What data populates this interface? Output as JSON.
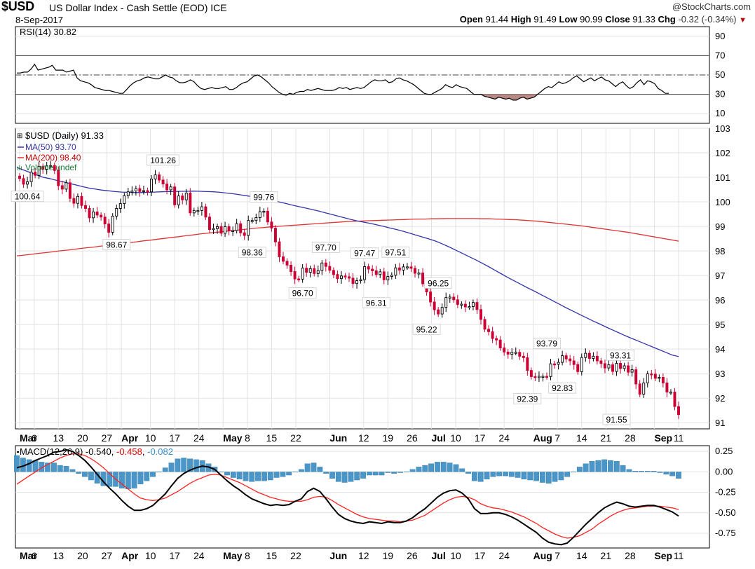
{
  "header": {
    "symbol": "$USD",
    "name": "US Dollar Index - Cash Settle (EOD) ICE",
    "date": "8-Sep-2017",
    "copyright": "@StockCharts.com",
    "open_label": "Open",
    "open": "91.44",
    "high_label": "High",
    "high": "91.49",
    "low_label": "Low",
    "low": "90.99",
    "close_label": "Close",
    "close": "91.33",
    "chg_label": "Chg",
    "chg": "-0.32 (-0.34%)"
  },
  "colors": {
    "up_candle": "#ffffff",
    "down_candle": "#cc0033",
    "ma50": "#3333aa",
    "ma200": "#dd3333",
    "rsi_line": "#000000",
    "rsi_oversold_fill": "#b98a84",
    "macd_line": "#000000",
    "signal_line": "#ff2222",
    "histogram": "#4a96c8",
    "grid": "#e2e2e2"
  },
  "chart_data": [
    {
      "type": "line",
      "name": "rsi",
      "legend": "RSI(14) 30.82",
      "y_ticks": [
        "90",
        "70",
        "50",
        "30",
        "10"
      ],
      "ylim": [
        0,
        100
      ],
      "reference_lines": [
        70,
        50,
        30
      ],
      "values": [
        52,
        52,
        53,
        53,
        56,
        61,
        55,
        56,
        57,
        58,
        60,
        55,
        55,
        55,
        53,
        54,
        55,
        47,
        44,
        43,
        42,
        40,
        37,
        36,
        35,
        34,
        34,
        33,
        32,
        31,
        31,
        35,
        39,
        42,
        44,
        45,
        47,
        48,
        47,
        46,
        46,
        48,
        50,
        48,
        47,
        44,
        42,
        42,
        43,
        45,
        43,
        39,
        36,
        35,
        36,
        37,
        36,
        36,
        37,
        38,
        35,
        35,
        37,
        40,
        42,
        43,
        46,
        49,
        50,
        48,
        45,
        42,
        38,
        35,
        32,
        30,
        29,
        31,
        30,
        32,
        33,
        33,
        35,
        34,
        35,
        36,
        35,
        34,
        34,
        34,
        35,
        37,
        36,
        37,
        35,
        36,
        37,
        36,
        37,
        40,
        43,
        45,
        44,
        44,
        45,
        42,
        43,
        46,
        47,
        45,
        44,
        42,
        40,
        37,
        34,
        31,
        30,
        30,
        32,
        34,
        36,
        40,
        38,
        37,
        40,
        38,
        37,
        36,
        33,
        30,
        30,
        30,
        28,
        27,
        26,
        25,
        27,
        26,
        25,
        26,
        24,
        24,
        26,
        27,
        25,
        26,
        27,
        30,
        33,
        36,
        38,
        37,
        40,
        43,
        41,
        42,
        44,
        47,
        49,
        46,
        43,
        45,
        47,
        44,
        46,
        48,
        45,
        44,
        41,
        38,
        41,
        43,
        39,
        36,
        38,
        42,
        45,
        40,
        44,
        43,
        41,
        36,
        34,
        31,
        31
      ],
      "last": 30.82
    },
    {
      "type": "candlestick",
      "name": "price",
      "legend": "$USD (Daily) 91.33",
      "ma50_legend": "MA(50) 93.70",
      "ma200_legend": "MA(200) 98.40",
      "volume_legend": "Volume undef",
      "y_ticks": [
        "103",
        "102",
        "101",
        "100",
        "99",
        "98",
        "97",
        "96",
        "95",
        "94",
        "93",
        "92",
        "91"
      ],
      "ylim": [
        90.75,
        103
      ],
      "closes": [
        100.95,
        100.72,
        100.82,
        101.21,
        101.08,
        101.44,
        101.33,
        101.47,
        101.48,
        101.28,
        100.66,
        100.52,
        100.78,
        100.14,
        99.94,
        100.22,
        99.85,
        99.73,
        99.35,
        99.59,
        99.46,
        99.38,
        99.1,
        98.76,
        99.42,
        99.73,
        99.93,
        100.25,
        100.41,
        100.44,
        100.54,
        100.42,
        100.46,
        100.41,
        100.93,
        101.1,
        100.89,
        100.73,
        100.49,
        100.61,
        99.88,
        100.24,
        100.08,
        100.36,
        99.55,
        99.64,
        99.65,
        99.8,
        99.38,
        98.87,
        98.91,
        98.99,
        98.72,
        98.99,
        98.82,
        98.83,
        99.11,
        98.74,
        98.63,
        99.24,
        99.24,
        99.36,
        99.6,
        99.62,
        99.18,
        98.93,
        98.37,
        97.76,
        97.58,
        97.42,
        97.16,
        96.86,
        96.85,
        97.3,
        97.13,
        97.28,
        97.08,
        97.2,
        97.51,
        97.37,
        97.21,
        97.04,
        96.87,
        96.98,
        96.95,
        96.89,
        96.67,
        96.79,
        96.83,
        97.36,
        97.26,
        97.19,
        97.04,
        97.15,
        96.82,
        96.96,
        97.01,
        97.31,
        97.22,
        97.35,
        97.35,
        97.29,
        97.09,
        97.1,
        96.66,
        96.33,
        95.92,
        95.6,
        95.43,
        95.7,
        96.1,
        96.12,
        96.01,
        95.82,
        95.83,
        95.72,
        95.73,
        95.9,
        95.61,
        95.21,
        94.81,
        94.71,
        94.43,
        94.37,
        94.05,
        93.88,
        93.79,
        93.87,
        93.87,
        93.71,
        93.65,
        93.13,
        92.88,
        92.84,
        92.89,
        92.89,
        92.88,
        93.4,
        93.38,
        93.46,
        93.73,
        93.6,
        93.52,
        93.37,
        93.08,
        93.66,
        93.83,
        93.62,
        93.71,
        93.52,
        93.41,
        93.23,
        93.36,
        93.09,
        93.42,
        93.21,
        93.32,
        93.06,
        93.16,
        92.58,
        92.16,
        92.62,
        92.99,
        92.98,
        92.81,
        92.85,
        92.62,
        92.25,
        92.25,
        91.66,
        91.33
      ],
      "ma50": [
        101.4,
        101.3,
        101.2,
        101.1,
        101.0,
        100.95,
        100.88,
        100.82,
        100.75,
        100.69,
        100.62,
        100.56,
        100.52,
        100.48,
        100.45,
        100.42,
        100.4,
        100.39,
        100.38,
        100.38,
        100.39,
        100.4,
        100.41,
        100.42,
        100.42,
        100.43,
        100.43,
        100.44,
        100.43,
        100.42,
        100.41,
        100.39,
        100.36,
        100.33,
        100.29,
        100.25,
        100.21,
        100.16,
        100.11,
        100.06,
        100.0,
        99.94,
        99.87,
        99.81,
        99.75,
        99.69,
        99.63,
        99.56,
        99.49,
        99.42,
        99.35,
        99.28,
        99.22,
        99.17,
        99.12,
        99.06,
        99.0,
        98.93,
        98.87,
        98.8,
        98.72,
        98.64,
        98.56,
        98.48,
        98.39,
        98.28,
        98.16,
        98.03,
        97.9,
        97.77,
        97.64,
        97.5,
        97.36,
        97.21,
        97.06,
        96.91,
        96.77,
        96.63,
        96.49,
        96.36,
        96.22,
        96.08,
        95.94,
        95.8,
        95.66,
        95.53,
        95.4,
        95.27,
        95.14,
        95.02,
        94.89,
        94.77,
        94.65,
        94.53,
        94.42,
        94.31,
        94.2,
        94.09,
        93.98,
        93.87,
        93.76,
        93.7
      ],
      "ma200": [
        97.8,
        97.83,
        97.86,
        97.9,
        97.93,
        97.96,
        98.0,
        98.03,
        98.06,
        98.1,
        98.13,
        98.16,
        98.2,
        98.23,
        98.27,
        98.3,
        98.34,
        98.37,
        98.41,
        98.44,
        98.48,
        98.51,
        98.55,
        98.58,
        98.62,
        98.65,
        98.69,
        98.72,
        98.75,
        98.78,
        98.81,
        98.84,
        98.87,
        98.9,
        98.93,
        98.95,
        98.98,
        99.0,
        99.02,
        99.04,
        99.06,
        99.08,
        99.1,
        99.12,
        99.14,
        99.16,
        99.18,
        99.2,
        99.21,
        99.22,
        99.23,
        99.24,
        99.25,
        99.26,
        99.27,
        99.28,
        99.29,
        99.3,
        99.3,
        99.31,
        99.31,
        99.32,
        99.32,
        99.32,
        99.32,
        99.32,
        99.31,
        99.31,
        99.3,
        99.29,
        99.28,
        99.27,
        99.25,
        99.23,
        99.21,
        99.18,
        99.15,
        99.12,
        99.09,
        99.06,
        99.03,
        98.99,
        98.95,
        98.91,
        98.87,
        98.83,
        98.79,
        98.75,
        98.7,
        98.65,
        98.6,
        98.55,
        98.5,
        98.45,
        98.4
      ],
      "annotations": [
        {
          "label": "100.64",
          "value": 100.64,
          "i": 2
        },
        {
          "label": "101.26",
          "value": 101.26,
          "i": 37
        },
        {
          "label": "98.67",
          "value": 98.67,
          "i": 25
        },
        {
          "label": "99.76",
          "value": 99.76,
          "i": 63
        },
        {
          "label": "98.36",
          "value": 98.36,
          "i": 60
        },
        {
          "label": "96.70",
          "value": 96.7,
          "i": 73
        },
        {
          "label": "97.70",
          "value": 97.7,
          "i": 79
        },
        {
          "label": "97.47",
          "value": 97.47,
          "i": 89
        },
        {
          "label": "96.31",
          "value": 96.31,
          "i": 92
        },
        {
          "label": "97.51",
          "value": 97.51,
          "i": 97
        },
        {
          "label": "96.25",
          "value": 96.25,
          "i": 108
        },
        {
          "label": "95.22",
          "value": 95.22,
          "i": 105
        },
        {
          "label": "93.79",
          "value": 93.79,
          "i": 136
        },
        {
          "label": "92.39",
          "value": 92.39,
          "i": 131
        },
        {
          "label": "92.83",
          "value": 92.83,
          "i": 140
        },
        {
          "label": "93.31",
          "value": 93.31,
          "i": 155
        },
        {
          "label": "91.55",
          "value": 91.55,
          "i": 154
        }
      ]
    },
    {
      "type": "line",
      "name": "macd",
      "legend_prefix": "MACD(12,26,9)",
      "legend_macd": "-0.540",
      "legend_signal": "-0.458",
      "legend_hist": "-0.082",
      "y_ticks": [
        "0.25",
        "0.00",
        "-0.25",
        "-0.50",
        "-0.75"
      ],
      "ylim": [
        -0.93,
        0.32
      ],
      "macd": [
        0.05,
        0.07,
        0.1,
        0.14,
        0.17,
        0.2,
        0.24,
        0.25,
        0.27,
        0.25,
        0.2,
        0.14,
        0.06,
        -0.03,
        -0.12,
        -0.2,
        -0.27,
        -0.35,
        -0.42,
        -0.47,
        -0.47,
        -0.45,
        -0.41,
        -0.34,
        -0.27,
        -0.17,
        -0.08,
        -0.02,
        0.02,
        0.05,
        0.07,
        0.06,
        0.03,
        -0.04,
        -0.11,
        -0.17,
        -0.22,
        -0.28,
        -0.33,
        -0.36,
        -0.39,
        -0.41,
        -0.4,
        -0.41,
        -0.4,
        -0.36,
        -0.33,
        -0.24,
        -0.2,
        -0.24,
        -0.33,
        -0.43,
        -0.52,
        -0.57,
        -0.6,
        -0.62,
        -0.63,
        -0.61,
        -0.62,
        -0.63,
        -0.61,
        -0.62,
        -0.62,
        -0.6,
        -0.56,
        -0.5,
        -0.45,
        -0.38,
        -0.31,
        -0.26,
        -0.23,
        -0.22,
        -0.26,
        -0.33,
        -0.45,
        -0.51,
        -0.51,
        -0.5,
        -0.5,
        -0.52,
        -0.55,
        -0.59,
        -0.64,
        -0.69,
        -0.74,
        -0.81,
        -0.86,
        -0.88,
        -0.89,
        -0.87,
        -0.8,
        -0.72,
        -0.64,
        -0.57,
        -0.5,
        -0.44,
        -0.4,
        -0.37,
        -0.39,
        -0.42,
        -0.43,
        -0.42,
        -0.41,
        -0.41,
        -0.43,
        -0.46,
        -0.49,
        -0.54
      ],
      "signal": [
        -0.15,
        -0.1,
        -0.05,
        0.0,
        0.05,
        0.09,
        0.13,
        0.17,
        0.2,
        0.22,
        0.22,
        0.2,
        0.16,
        0.11,
        0.05,
        -0.02,
        -0.09,
        -0.15,
        -0.21,
        -0.27,
        -0.32,
        -0.34,
        -0.35,
        -0.34,
        -0.32,
        -0.28,
        -0.24,
        -0.19,
        -0.14,
        -0.1,
        -0.07,
        -0.04,
        -0.03,
        -0.04,
        -0.07,
        -0.1,
        -0.13,
        -0.17,
        -0.21,
        -0.25,
        -0.28,
        -0.31,
        -0.33,
        -0.35,
        -0.36,
        -0.36,
        -0.36,
        -0.34,
        -0.31,
        -0.3,
        -0.31,
        -0.35,
        -0.4,
        -0.44,
        -0.48,
        -0.52,
        -0.55,
        -0.57,
        -0.58,
        -0.59,
        -0.6,
        -0.6,
        -0.61,
        -0.6,
        -0.59,
        -0.56,
        -0.53,
        -0.48,
        -0.43,
        -0.38,
        -0.34,
        -0.31,
        -0.3,
        -0.31,
        -0.34,
        -0.39,
        -0.42,
        -0.44,
        -0.45,
        -0.47,
        -0.49,
        -0.52,
        -0.55,
        -0.59,
        -0.63,
        -0.68,
        -0.72,
        -0.76,
        -0.79,
        -0.81,
        -0.8,
        -0.78,
        -0.74,
        -0.7,
        -0.64,
        -0.59,
        -0.54,
        -0.5,
        -0.47,
        -0.45,
        -0.44,
        -0.43,
        -0.42,
        -0.42,
        -0.42,
        -0.43,
        -0.44,
        -0.46
      ]
    }
  ],
  "x_axis": {
    "labels": [
      {
        "text": "Mar",
        "i": 0,
        "bold": true
      },
      {
        "text": "6",
        "i": 3,
        "bold": false
      },
      {
        "text": "13",
        "i": 8,
        "bold": false
      },
      {
        "text": "20",
        "i": 13,
        "bold": false
      },
      {
        "text": "27",
        "i": 18,
        "bold": false
      },
      {
        "text": "Apr",
        "i": 21,
        "bold": true
      },
      {
        "text": "10",
        "i": 27,
        "bold": false
      },
      {
        "text": "17",
        "i": 32,
        "bold": false
      },
      {
        "text": "24",
        "i": 37,
        "bold": false
      },
      {
        "text": "May",
        "i": 42,
        "bold": true
      },
      {
        "text": "8",
        "i": 47,
        "bold": false
      },
      {
        "text": "15",
        "i": 52,
        "bold": false
      },
      {
        "text": "22",
        "i": 57,
        "bold": false
      },
      {
        "text": "Jun",
        "i": 64,
        "bold": true
      },
      {
        "text": "12",
        "i": 71,
        "bold": false
      },
      {
        "text": "19",
        "i": 76,
        "bold": false
      },
      {
        "text": "26",
        "i": 81,
        "bold": false
      },
      {
        "text": "Jul",
        "i": 85,
        "bold": true
      },
      {
        "text": "10",
        "i": 90,
        "bold": false
      },
      {
        "text": "17",
        "i": 95,
        "bold": false
      },
      {
        "text": "24",
        "i": 100,
        "bold": false
      },
      {
        "text": "Aug",
        "i": 106,
        "bold": true
      },
      {
        "text": "7",
        "i": 111,
        "bold": false
      },
      {
        "text": "14",
        "i": 116,
        "bold": false
      },
      {
        "text": "21",
        "i": 121,
        "bold": false
      },
      {
        "text": "28",
        "i": 126,
        "bold": false
      },
      {
        "text": "Sep",
        "i": 131,
        "bold": true
      },
      {
        "text": "11",
        "i": 136,
        "bold": false
      }
    ]
  }
}
